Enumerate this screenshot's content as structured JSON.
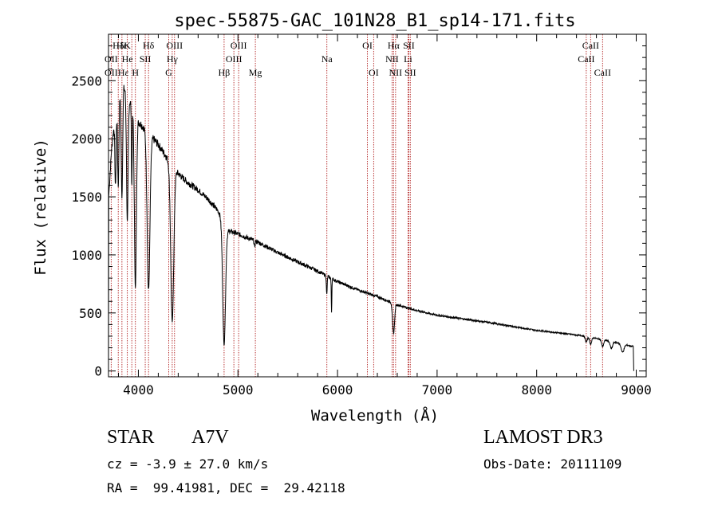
{
  "chart_data": {
    "type": "line",
    "title": "spec-55875-GAC_101N28_B1_sp14-171.fits",
    "xlabel": "Wavelength (Å)",
    "ylabel": "Flux (relative)",
    "xlim": [
      3700,
      9100
    ],
    "ylim": [
      -50,
      2900
    ],
    "xticks": [
      4000,
      5000,
      6000,
      7000,
      8000,
      9000
    ],
    "xtick_labels": [
      "4000",
      "5000",
      "6000",
      "7000",
      "8000",
      "9000"
    ],
    "yticks": [
      0,
      500,
      1000,
      1500,
      2000,
      2500
    ],
    "ytick_labels": [
      "0",
      "500",
      "1000",
      "1500",
      "2000",
      "2500"
    ],
    "line_color": "#000000",
    "marker_color": "#b22222",
    "series": [
      {
        "name": "flux",
        "continuum_points": [
          [
            3700,
            0
          ],
          [
            3702,
            1500
          ],
          [
            3730,
            1900
          ],
          [
            3760,
            2150
          ],
          [
            3800,
            2300
          ],
          [
            3850,
            2450
          ],
          [
            3900,
            2350
          ],
          [
            3950,
            2250
          ],
          [
            4000,
            2150
          ],
          [
            4100,
            2050
          ],
          [
            4200,
            1950
          ],
          [
            4300,
            1820
          ],
          [
            4400,
            1700
          ],
          [
            4500,
            1620
          ],
          [
            4600,
            1560
          ],
          [
            4700,
            1480
          ],
          [
            4800,
            1380
          ],
          [
            4900,
            1210
          ],
          [
            5000,
            1180
          ],
          [
            5200,
            1110
          ],
          [
            5400,
            1020
          ],
          [
            5600,
            940
          ],
          [
            5800,
            860
          ],
          [
            6000,
            770
          ],
          [
            6200,
            700
          ],
          [
            6400,
            640
          ],
          [
            6600,
            570
          ],
          [
            6800,
            520
          ],
          [
            7000,
            480
          ],
          [
            7500,
            420
          ],
          [
            8000,
            350
          ],
          [
            8500,
            300
          ],
          [
            8600,
            280
          ],
          [
            8800,
            245
          ],
          [
            8970,
            210
          ],
          [
            8975,
            0
          ]
        ],
        "absorption_lines": [
          {
            "center": 3770,
            "depth": 600,
            "width": 6
          },
          {
            "center": 3798,
            "depth": 700,
            "width": 6
          },
          {
            "center": 3835,
            "depth": 900,
            "width": 7
          },
          {
            "center": 3889,
            "depth": 1100,
            "width": 8
          },
          {
            "center": 3934,
            "depth": 700,
            "width": 4
          },
          {
            "center": 3970,
            "depth": 1500,
            "width": 10
          },
          {
            "center": 4102,
            "depth": 1350,
            "width": 14
          },
          {
            "center": 4340,
            "depth": 1350,
            "width": 15
          },
          {
            "center": 4861,
            "depth": 1050,
            "width": 14
          },
          {
            "center": 5167,
            "depth": 60,
            "width": 4
          },
          {
            "center": 5892,
            "depth": 160,
            "width": 4
          },
          {
            "center": 5940,
            "depth": 290,
            "width": 3
          },
          {
            "center": 6563,
            "depth": 260,
            "width": 10
          },
          {
            "center": 8498,
            "depth": 50,
            "width": 10
          },
          {
            "center": 8542,
            "depth": 60,
            "width": 10
          },
          {
            "center": 8662,
            "depth": 60,
            "width": 10
          },
          {
            "center": 8750,
            "depth": 60,
            "width": 12
          },
          {
            "center": 8863,
            "depth": 70,
            "width": 14
          }
        ]
      }
    ],
    "line_markers": [
      {
        "label": "Hδ",
        "x": 3798,
        "row": 0
      },
      {
        "label": "Hε",
        "x": 3835,
        "row": 0
      },
      {
        "label": "K",
        "x": 3889,
        "row": 0
      },
      {
        "label": "Hδ",
        "x": 4102,
        "row": 0
      },
      {
        "label": "OIII",
        "x": 4363,
        "row": 0
      },
      {
        "label": "OIII",
        "x": 5007,
        "row": 0
      },
      {
        "label": "OI",
        "x": 6300,
        "row": 0
      },
      {
        "label": "Hα",
        "x": 6563,
        "row": 0
      },
      {
        "label": "SII",
        "x": 6716,
        "row": 0
      },
      {
        "label": "CaII",
        "x": 8542,
        "row": 0
      },
      {
        "label": "OII",
        "x": 3727,
        "row": 1
      },
      {
        "label": "He",
        "x": 3889,
        "row": 1
      },
      {
        "label": "SII",
        "x": 4069,
        "row": 1
      },
      {
        "label": "Hγ",
        "x": 4340,
        "row": 1
      },
      {
        "label": "OIII",
        "x": 4959,
        "row": 1
      },
      {
        "label": "Na",
        "x": 5893,
        "row": 1
      },
      {
        "label": "NII",
        "x": 6548,
        "row": 1
      },
      {
        "label": "Li",
        "x": 6708,
        "row": 1
      },
      {
        "label": "CaII",
        "x": 8498,
        "row": 1
      },
      {
        "label": "OII",
        "x": 3727,
        "row": 2
      },
      {
        "label": "Hε",
        "x": 3850,
        "row": 2
      },
      {
        "label": "H",
        "x": 3970,
        "row": 2
      },
      {
        "label": "G",
        "x": 4305,
        "row": 2
      },
      {
        "label": "Hβ",
        "x": 4861,
        "row": 2
      },
      {
        "label": "Mg",
        "x": 5175,
        "row": 2
      },
      {
        "label": "OI",
        "x": 6363,
        "row": 2
      },
      {
        "label": "NII",
        "x": 6583,
        "row": 2
      },
      {
        "label": "SII",
        "x": 6731,
        "row": 2
      },
      {
        "label": "CaII",
        "x": 8662,
        "row": 2
      }
    ],
    "marker_line_positions": [
      3727,
      3798,
      3835,
      3889,
      3934,
      3970,
      4069,
      4102,
      4305,
      4340,
      4363,
      4861,
      4959,
      5007,
      5175,
      5893,
      6300,
      6363,
      6548,
      6563,
      6583,
      6708,
      6716,
      6731,
      8498,
      8542,
      8662
    ]
  },
  "info": {
    "object_class": "STAR",
    "subclass": "A7V",
    "survey": "LAMOST DR3",
    "redshift": "cz = -3.9 ± 27.0 km/s",
    "obs_date": "Obs-Date: 20111109",
    "coords": "RA =  99.41981, DEC =  29.42118"
  }
}
